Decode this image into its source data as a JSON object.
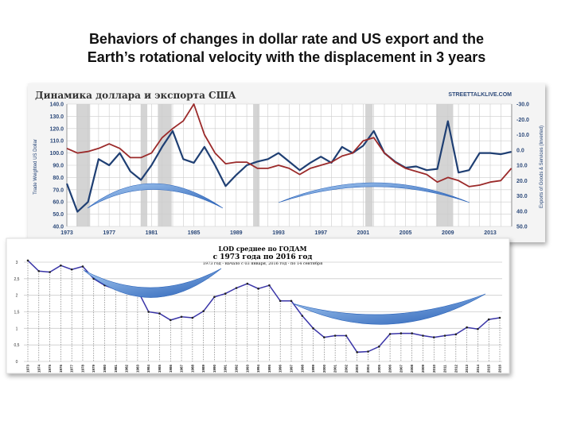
{
  "slide": {
    "title_line1": "Behaviors of changes in dollar rate and US export and the",
    "title_line2": "Earth’s rotational velocity with the displacement in 3 years"
  },
  "chart_data": [
    {
      "type": "line",
      "title": "Динамика доллара и экспорта США",
      "source": "STREETTALKLIVE.COM",
      "ylabel": "Trade Weighted US Dollar",
      "y2label": "Exports of Goods & Services (Inverted)",
      "ylim": [
        40,
        140
      ],
      "y2lim": [
        50,
        -30
      ],
      "y2_inverted": true,
      "yticks": [
        "140.0",
        "130.0",
        "120.0",
        "110.0",
        "100.0",
        "90.0",
        "80.0",
        "70.0",
        "60.0",
        "50.0",
        "40.0"
      ],
      "y2ticks": [
        "-30.0",
        "-20.0",
        "-10.0",
        "0.0",
        "10.0",
        "20.0",
        "30.0",
        "40.0",
        "50.0"
      ],
      "xticks": [
        "1973",
        "1977",
        "1981",
        "1985",
        "1989",
        "1993",
        "1997",
        "2001",
        "2005",
        "2009",
        "2013"
      ],
      "grid": true,
      "recession_bands": [
        [
          1973.9,
          1975.2
        ],
        [
          1980.0,
          1980.6
        ],
        [
          1981.6,
          1982.9
        ],
        [
          1990.6,
          1991.2
        ],
        [
          2001.2,
          2001.9
        ],
        [
          2007.9,
          2009.5
        ]
      ],
      "x": [
        1973,
        1974,
        1975,
        1976,
        1977,
        1978,
        1979,
        1980,
        1981,
        1982,
        1983,
        1984,
        1985,
        1986,
        1987,
        1988,
        1989,
        1990,
        1991,
        1992,
        1993,
        1994,
        1995,
        1996,
        1997,
        1998,
        1999,
        2000,
        2001,
        2002,
        2003,
        2004,
        2005,
        2006,
        2007,
        2008,
        2009,
        2010,
        2011,
        2012,
        2013,
        2014,
        2015
      ],
      "series": [
        {
          "axis": "left",
          "color": "#1f3f73",
          "values": [
            75,
            52,
            60,
            95,
            90,
            100,
            85,
            78,
            90,
            105,
            118,
            95,
            92,
            105,
            90,
            73,
            82,
            90,
            93,
            95,
            100,
            93,
            86,
            92,
            97,
            92,
            105,
            100,
            106,
            118,
            100,
            93,
            88,
            89,
            86,
            87,
            126,
            84,
            86,
            100,
            100,
            99,
            101
          ]
        },
        {
          "axis": "right",
          "color": "#9b2a2a",
          "values": [
            -1,
            2,
            1,
            -1,
            -4,
            -1,
            5,
            5,
            2,
            -8,
            -14,
            -19,
            -30,
            -10,
            2,
            9,
            8,
            8,
            12,
            12,
            10,
            12,
            16,
            12,
            10,
            8,
            4,
            2,
            -6,
            -8,
            2,
            8,
            12,
            14,
            16,
            21,
            18,
            20,
            24,
            23,
            21,
            20,
            12
          ]
        }
      ]
    },
    {
      "type": "line",
      "title": "LOD среднее  по ГОДАМ",
      "subtitle": "с 1973 года по 2016 год",
      "note": "1973 год - начало с 03 января, 2016 год - по 14 сентября",
      "ylim": [
        0,
        3
      ],
      "yticks": [
        "0",
        "0,5",
        "1",
        "1,5",
        "2",
        "2,5",
        "3"
      ],
      "grid": true,
      "x": [
        1973,
        1974,
        1975,
        1976,
        1977,
        1978,
        1979,
        1980,
        1981,
        1982,
        1983,
        1984,
        1985,
        1986,
        1987,
        1988,
        1989,
        1990,
        1991,
        1992,
        1993,
        1994,
        1995,
        1996,
        1997,
        1998,
        1999,
        2000,
        2001,
        2002,
        2003,
        2004,
        2005,
        2006,
        2007,
        2008,
        2009,
        2010,
        2011,
        2012,
        2013,
        2014,
        2015,
        2016
      ],
      "series": [
        {
          "color": "#3a35a8",
          "values": [
            3.05,
            2.73,
            2.7,
            2.9,
            2.78,
            2.87,
            2.5,
            2.3,
            2.18,
            2.15,
            2.15,
            1.5,
            1.45,
            1.25,
            1.35,
            1.32,
            1.52,
            1.95,
            2.05,
            2.22,
            2.35,
            2.2,
            2.3,
            1.83,
            1.83,
            1.38,
            1.0,
            0.73,
            0.78,
            0.78,
            0.28,
            0.3,
            0.45,
            0.83,
            0.85,
            0.85,
            0.78,
            0.73,
            0.78,
            0.82,
            1.03,
            0.98,
            1.27,
            1.32
          ]
        }
      ]
    }
  ]
}
